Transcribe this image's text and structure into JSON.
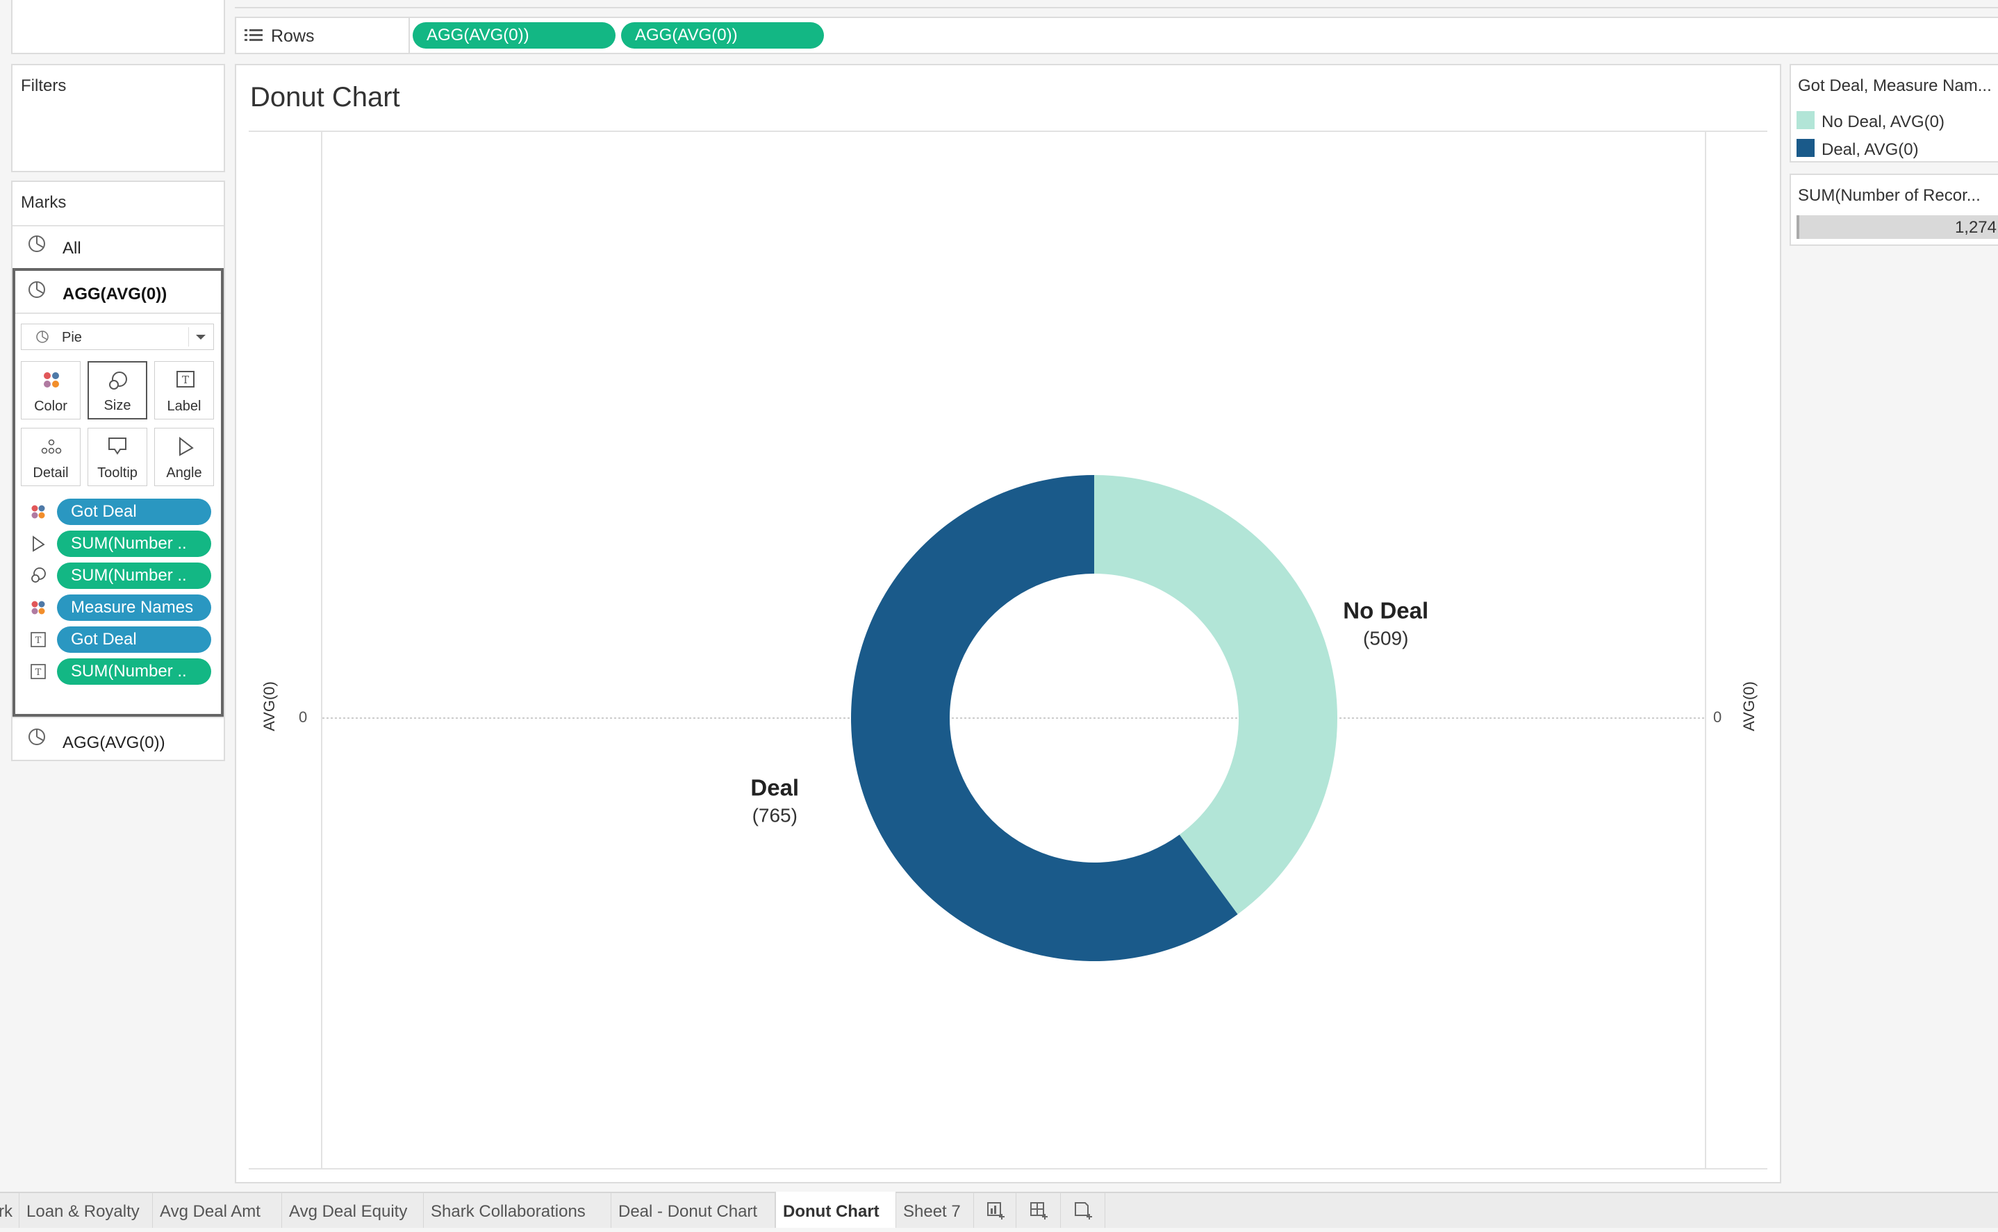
{
  "shelf": {
    "rows_label": "Rows",
    "rows_pills": [
      "AGG(AVG(0))",
      "AGG(AVG(0))"
    ]
  },
  "filters": {
    "title": "Filters"
  },
  "marks": {
    "title": "Marks",
    "all_label": "All",
    "active_layer": "AGG(AVG(0))",
    "mark_type": "Pie",
    "cards": [
      "Color",
      "Size",
      "Label",
      "Detail",
      "Tooltip",
      "Angle"
    ],
    "fields": [
      {
        "label": "Got Deal",
        "icon": "color-icon",
        "color": "#2a97c1"
      },
      {
        "label": "SUM(Number ..",
        "icon": "angle-icon",
        "color": "#13b784"
      },
      {
        "label": "SUM(Number ..",
        "icon": "size-icon",
        "color": "#13b784"
      },
      {
        "label": "Measure Names",
        "icon": "color-icon",
        "color": "#2a97c1"
      },
      {
        "label": "Got Deal",
        "icon": "label-icon",
        "color": "#2a97c1"
      },
      {
        "label": "SUM(Number ..",
        "icon": "label-icon",
        "color": "#13b784"
      }
    ],
    "second_layer": "AGG(AVG(0))"
  },
  "view": {
    "title": "Donut Chart",
    "left_axis_title": "AVG(0)",
    "left_axis_tick": "0",
    "right_axis_title": "AVG(0)",
    "right_axis_tick": "0"
  },
  "legend": {
    "title": "Got Deal, Measure Nam...",
    "items": [
      {
        "label": "No Deal, AVG(0)",
        "color": "#b2e5d7"
      },
      {
        "label": "Deal, AVG(0)",
        "color": "#1a5a8a"
      }
    ]
  },
  "size_legend": {
    "title": "SUM(Number of Recor...",
    "value": "1,274"
  },
  "chart_data": {
    "type": "pie",
    "title": "Donut Chart",
    "hole": true,
    "categories": [
      "No Deal",
      "Deal"
    ],
    "values": [
      509,
      765
    ],
    "colors": [
      "#b2e5d7",
      "#1a5a8a"
    ],
    "labels": [
      {
        "name": "No Deal",
        "value": "(509)"
      },
      {
        "name": "Deal",
        "value": "(765)"
      }
    ]
  },
  "tabs": [
    {
      "label": "rk",
      "active": false
    },
    {
      "label": "Loan & Royalty",
      "active": false
    },
    {
      "label": "Avg Deal Amt",
      "active": false
    },
    {
      "label": "Avg Deal Equity",
      "active": false
    },
    {
      "label": "Shark Collaborations",
      "active": false
    },
    {
      "label": "Deal - Donut Chart",
      "active": false
    },
    {
      "label": "Donut Chart",
      "active": true
    },
    {
      "label": "Sheet 7",
      "active": false
    }
  ],
  "tab_icons": [
    "new-worksheet-icon",
    "new-dashboard-icon",
    "new-story-icon"
  ]
}
